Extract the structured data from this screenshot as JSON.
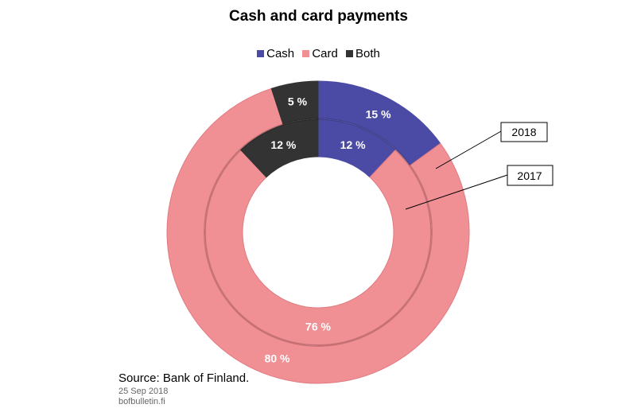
{
  "chart_data": {
    "type": "pie",
    "subtype": "doughnut",
    "title": "Cash and card payments",
    "categories": [
      "Cash",
      "Card",
      "Both"
    ],
    "legend_position": "top",
    "colors": {
      "Cash": "#4b4ba6",
      "Card": "#f09094",
      "Both": "#333333"
    },
    "series": [
      {
        "name": "2018",
        "ring": "outer",
        "values": [
          15,
          80,
          5
        ],
        "labels": [
          "15 %",
          "80 %",
          "5 %"
        ]
      },
      {
        "name": "2017",
        "ring": "inner",
        "values": [
          12,
          76,
          12
        ],
        "labels": [
          "12 %",
          "76 %",
          "12 %"
        ]
      }
    ]
  },
  "footer": {
    "source": "Source: Bank of Finland.",
    "date": "25 Sep 2018",
    "site": "bofbulletin.fi"
  }
}
